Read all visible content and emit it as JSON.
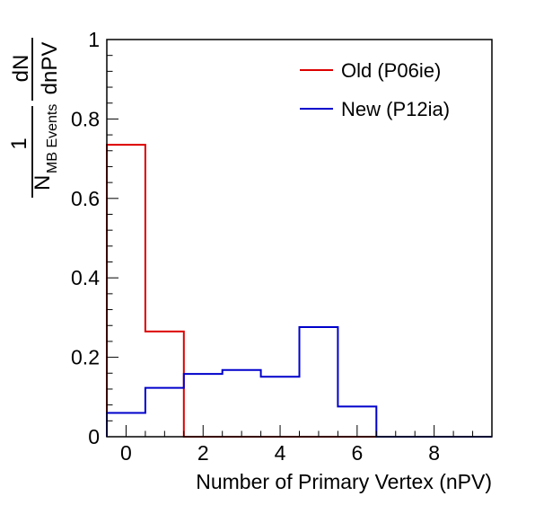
{
  "chart_data": {
    "type": "line",
    "title": "",
    "xlabel": "Number of Primary Vertex (nPV)",
    "ylabel": {
      "numerator": "1",
      "denominator_main": "N",
      "denominator_sub": "MB Events",
      "frac_numerator": "dN",
      "frac_denominator": "dnPV"
    },
    "xlim": [
      -0.5,
      9.5
    ],
    "ylim": [
      0,
      1
    ],
    "grid": false,
    "legend_position": "top-right",
    "x_ticks": [
      0,
      2,
      4,
      6,
      8
    ],
    "x_tick_labels": [
      "0",
      "2",
      "4",
      "6",
      "8"
    ],
    "y_ticks": [
      0,
      0.2,
      0.4,
      0.6,
      0.8,
      1
    ],
    "y_tick_labels": [
      "0",
      "0.2",
      "0.4",
      "0.6",
      "0.8",
      "1"
    ],
    "bin_edges": [
      -0.5,
      0.5,
      1.5,
      2.5,
      3.5,
      4.5,
      5.5,
      6.5,
      7.5,
      8.5,
      9.5
    ],
    "series": [
      {
        "name": "Old (P06ie)",
        "color": "#dd0000",
        "values": [
          0.735,
          0.265,
          0,
          0,
          0,
          0,
          0,
          0,
          0,
          0
        ]
      },
      {
        "name": "New (P12ia)",
        "color": "#0000cc",
        "values": [
          0.06,
          0.123,
          0.158,
          0.168,
          0.151,
          0.276,
          0.076,
          0,
          0,
          0
        ]
      }
    ]
  }
}
